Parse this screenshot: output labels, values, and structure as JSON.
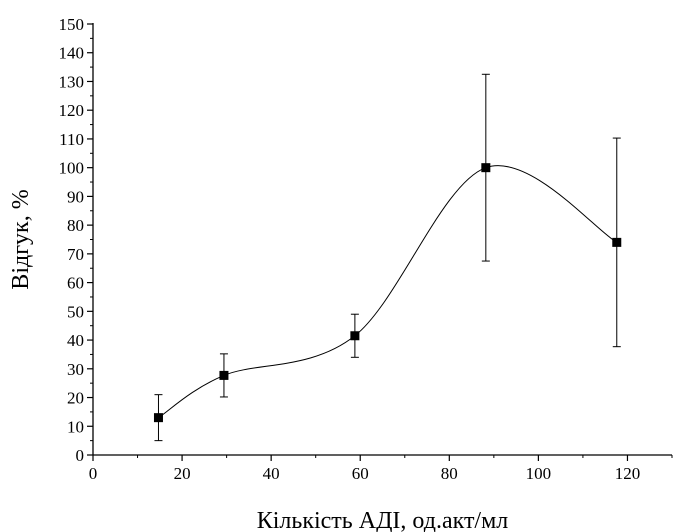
{
  "chart_data": {
    "type": "scatter",
    "title": "",
    "xlabel": "Кількість АДІ, од.акт/мл",
    "ylabel": "Відгук, %",
    "xlim": [
      0,
      130
    ],
    "ylim": [
      0,
      150
    ],
    "x_ticks": [
      0,
      20,
      40,
      60,
      80,
      100,
      120
    ],
    "y_ticks": [
      0,
      10,
      20,
      30,
      40,
      50,
      60,
      70,
      80,
      90,
      100,
      110,
      120,
      130,
      140,
      150
    ],
    "grid": false,
    "legend": "none",
    "series": [
      {
        "x": [
          14.7,
          29.4,
          58.8,
          88.2,
          117.6
        ],
        "y": [
          13,
          27.7,
          41.5,
          100,
          74
        ],
        "error": [
          8,
          7.5,
          7.5,
          32.5,
          36.3
        ],
        "marker": "square",
        "line": "smooth-spline",
        "color": "#000000"
      }
    ]
  }
}
